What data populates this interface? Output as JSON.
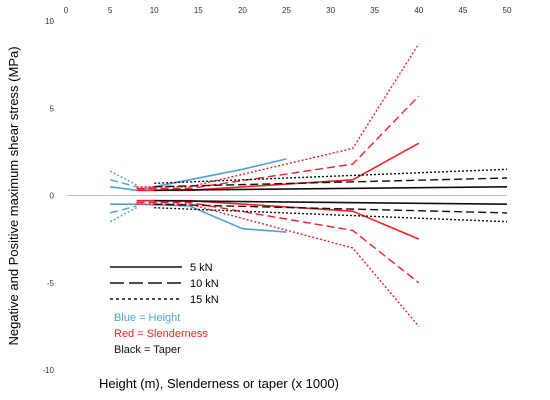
{
  "chart_data": {
    "type": "line",
    "title": "",
    "xlabel": "Height (m), Slenderness or taper (x 1000)",
    "ylabel": "Negative and Positive maximum shear stress (MPa)",
    "xlim": [
      0,
      50
    ],
    "ylim": [
      -10,
      10
    ],
    "x_ticks": [
      "0",
      "5",
      "10",
      "15",
      "20",
      "25",
      "30",
      "35",
      "40",
      "45",
      "50"
    ],
    "y_ticks": [
      "10",
      "5",
      "0",
      "-5",
      "-10"
    ],
    "colors": {
      "height": "#4ea1d3",
      "slenderness": "#ee2222",
      "taper": "#111111"
    },
    "line_styles": {
      "5 kN": "solid",
      "10 kN": "dashed",
      "15 kN": "dotted"
    },
    "legend": {
      "styles": [
        {
          "label": "5 kN",
          "dash": "solid"
        },
        {
          "label": "10 kN",
          "dash": "dashed"
        },
        {
          "label": "15 kN",
          "dash": "dotted"
        }
      ],
      "groups": [
        {
          "label": "Blue = Height",
          "color": "#4ea1d3"
        },
        {
          "label": "Red = Slenderness",
          "color": "#ee2222"
        },
        {
          "label": "Black = Taper",
          "color": "#111111"
        }
      ]
    },
    "series": [
      {
        "group": "height",
        "load": "5 kN",
        "sign": "positive",
        "x": [
          5,
          8,
          20,
          25
        ],
        "y": [
          0.5,
          0.3,
          1.5,
          2.1
        ]
      },
      {
        "group": "height",
        "load": "5 kN",
        "sign": "negative",
        "x": [
          5,
          8,
          14,
          20,
          25
        ],
        "y": [
          -0.5,
          -0.5,
          -0.6,
          -1.9,
          -2.1
        ]
      },
      {
        "group": "height",
        "load": "10 kN",
        "sign": "positive",
        "x": [
          5,
          8
        ],
        "y": [
          0.9,
          0.5
        ]
      },
      {
        "group": "height",
        "load": "10 kN",
        "sign": "negative",
        "x": [
          5,
          8
        ],
        "y": [
          -1.0,
          -0.6
        ]
      },
      {
        "group": "height",
        "load": "15 kN",
        "sign": "positive",
        "x": [
          5,
          8
        ],
        "y": [
          1.4,
          0.6
        ]
      },
      {
        "group": "height",
        "load": "15 kN",
        "sign": "negative",
        "x": [
          5,
          8
        ],
        "y": [
          -1.5,
          -0.7
        ]
      },
      {
        "group": "slenderness",
        "load": "5 kN",
        "sign": "positive",
        "x": [
          8,
          14,
          32.5,
          40
        ],
        "y": [
          0.3,
          0.3,
          0.9,
          3.0
        ]
      },
      {
        "group": "slenderness",
        "load": "5 kN",
        "sign": "negative",
        "x": [
          8,
          14,
          32.5,
          40
        ],
        "y": [
          -0.3,
          -0.3,
          -0.9,
          -2.5
        ]
      },
      {
        "group": "slenderness",
        "load": "10 kN",
        "sign": "positive",
        "x": [
          8,
          14,
          32.5,
          40
        ],
        "y": [
          0.4,
          0.4,
          1.8,
          5.7
        ]
      },
      {
        "group": "slenderness",
        "load": "10 kN",
        "sign": "negative",
        "x": [
          8,
          14,
          32.5,
          40
        ],
        "y": [
          -0.4,
          -0.4,
          -2.0,
          -5.0
        ]
      },
      {
        "group": "slenderness",
        "load": "15 kN",
        "sign": "positive",
        "x": [
          8,
          14,
          32.5,
          40
        ],
        "y": [
          0.5,
          0.5,
          2.7,
          8.7
        ]
      },
      {
        "group": "slenderness",
        "load": "15 kN",
        "sign": "negative",
        "x": [
          8,
          14,
          32.5,
          40
        ],
        "y": [
          -0.5,
          -0.5,
          -3.0,
          -7.5
        ]
      },
      {
        "group": "taper",
        "load": "5 kN",
        "sign": "positive",
        "x": [
          10,
          50
        ],
        "y": [
          0.3,
          0.5
        ]
      },
      {
        "group": "taper",
        "load": "5 kN",
        "sign": "negative",
        "x": [
          10,
          50
        ],
        "y": [
          -0.3,
          -0.5
        ]
      },
      {
        "group": "taper",
        "load": "10 kN",
        "sign": "positive",
        "x": [
          10,
          50
        ],
        "y": [
          0.5,
          1.0
        ]
      },
      {
        "group": "taper",
        "load": "10 kN",
        "sign": "negative",
        "x": [
          10,
          50
        ],
        "y": [
          -0.5,
          -1.0
        ]
      },
      {
        "group": "taper",
        "load": "15 kN",
        "sign": "positive",
        "x": [
          10,
          50
        ],
        "y": [
          0.7,
          1.5
        ]
      },
      {
        "group": "taper",
        "load": "15 kN",
        "sign": "negative",
        "x": [
          10,
          50
        ],
        "y": [
          -0.7,
          -1.5
        ]
      }
    ]
  }
}
